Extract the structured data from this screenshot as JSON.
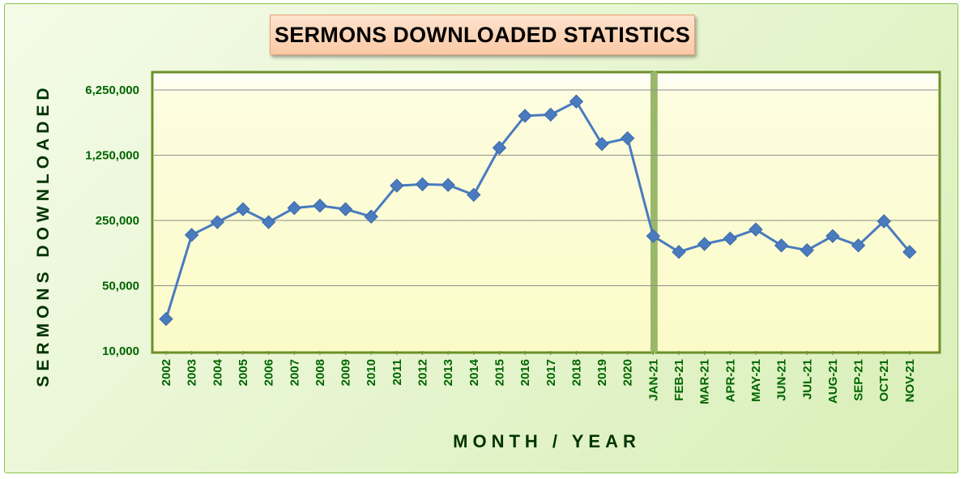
{
  "chart_data": {
    "type": "line",
    "title": "SERMONS DOWNLOADED STATISTICS",
    "xlabel": "MONTH / YEAR",
    "ylabel": "SERMONS DOWNLOADED",
    "y_scale": "log",
    "ylim": [
      10000,
      6250000
    ],
    "y_ticks": [
      10000,
      50000,
      250000,
      1250000,
      6250000
    ],
    "y_tick_labels": [
      "10,000",
      "50,000",
      "250,000",
      "1,250,000",
      "6,250,000"
    ],
    "grid": true,
    "legend": "none",
    "line_color": "#4a7bbf",
    "marker": "diamond",
    "segments": [
      {
        "categories": [
          "2002",
          "2003",
          "2004",
          "2005",
          "2006",
          "2007",
          "2008",
          "2009",
          "2010",
          "2011",
          "2012",
          "2013",
          "2014",
          "2015",
          "2016",
          "2017",
          "2018",
          "2019",
          "2020"
        ],
        "values": [
          22000,
          175000,
          240000,
          330000,
          240000,
          340000,
          360000,
          330000,
          275000,
          590000,
          610000,
          600000,
          470000,
          1500000,
          3300000,
          3400000,
          4700000,
          1650000,
          1900000
        ]
      },
      {
        "categories": [
          "JAN-21",
          "FEB-21",
          "MAR-21",
          "APR-21",
          "MAY-21",
          "JUN-21",
          "JUL-21",
          "AUG-21",
          "SEP-21",
          "OCT-21",
          "NOV-21"
        ],
        "values": [
          170000,
          115000,
          140000,
          160000,
          200000,
          135000,
          120000,
          170000,
          135000,
          245000,
          115000
        ]
      }
    ]
  }
}
